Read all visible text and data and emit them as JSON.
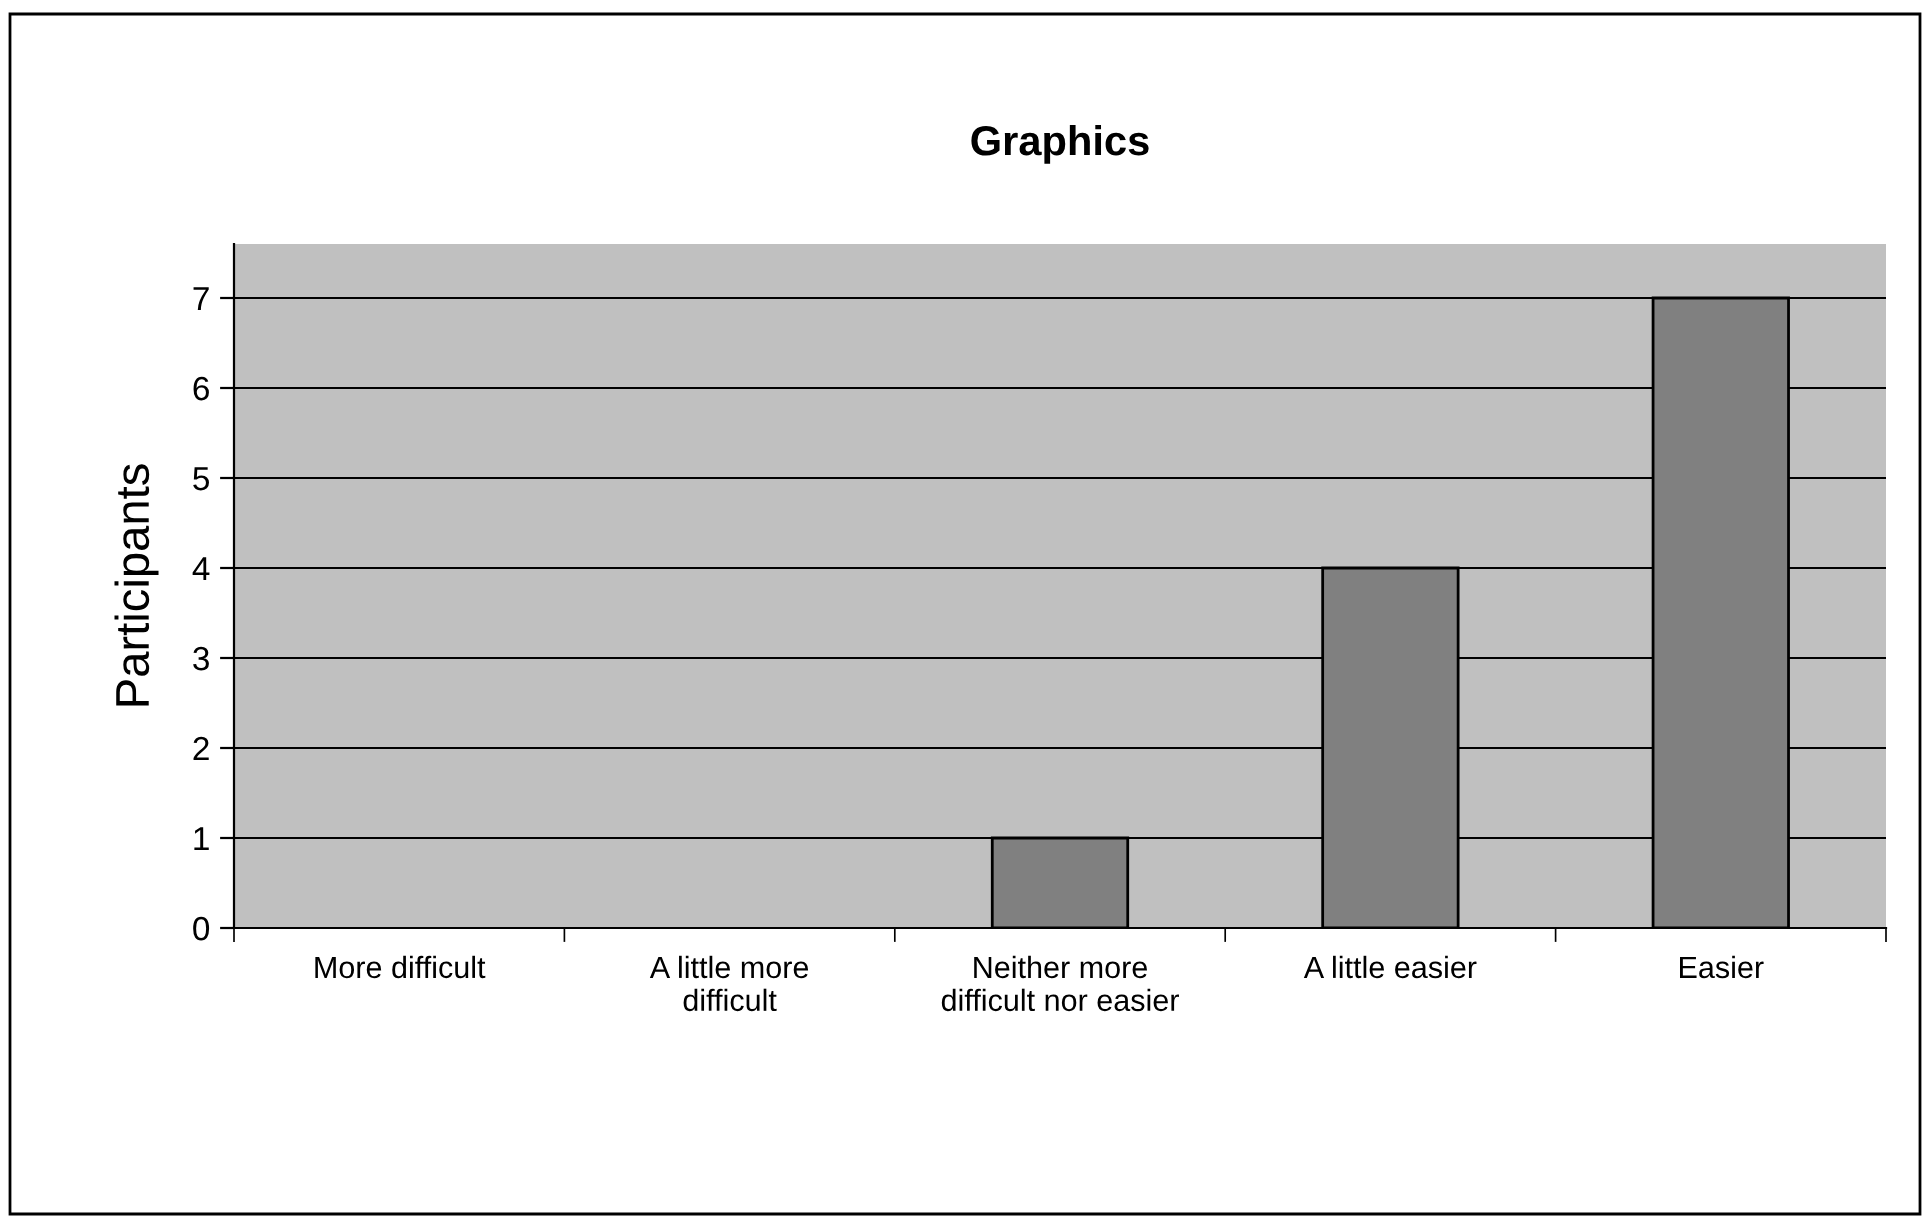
{
  "chart_data": {
    "type": "bar",
    "title": "Graphics",
    "ylabel": "Participants",
    "categories": [
      "More difficult",
      "A little more\ndifficult",
      "Neither more\ndifficult nor easier",
      "A little easier",
      "Easier"
    ],
    "values": [
      0,
      0,
      1,
      4,
      7
    ],
    "color": "#808080",
    "ylim": [
      0,
      7.6
    ],
    "yticks": [
      0,
      1,
      2,
      3,
      4,
      5,
      6,
      7
    ],
    "grid": "y",
    "legend": false
  }
}
